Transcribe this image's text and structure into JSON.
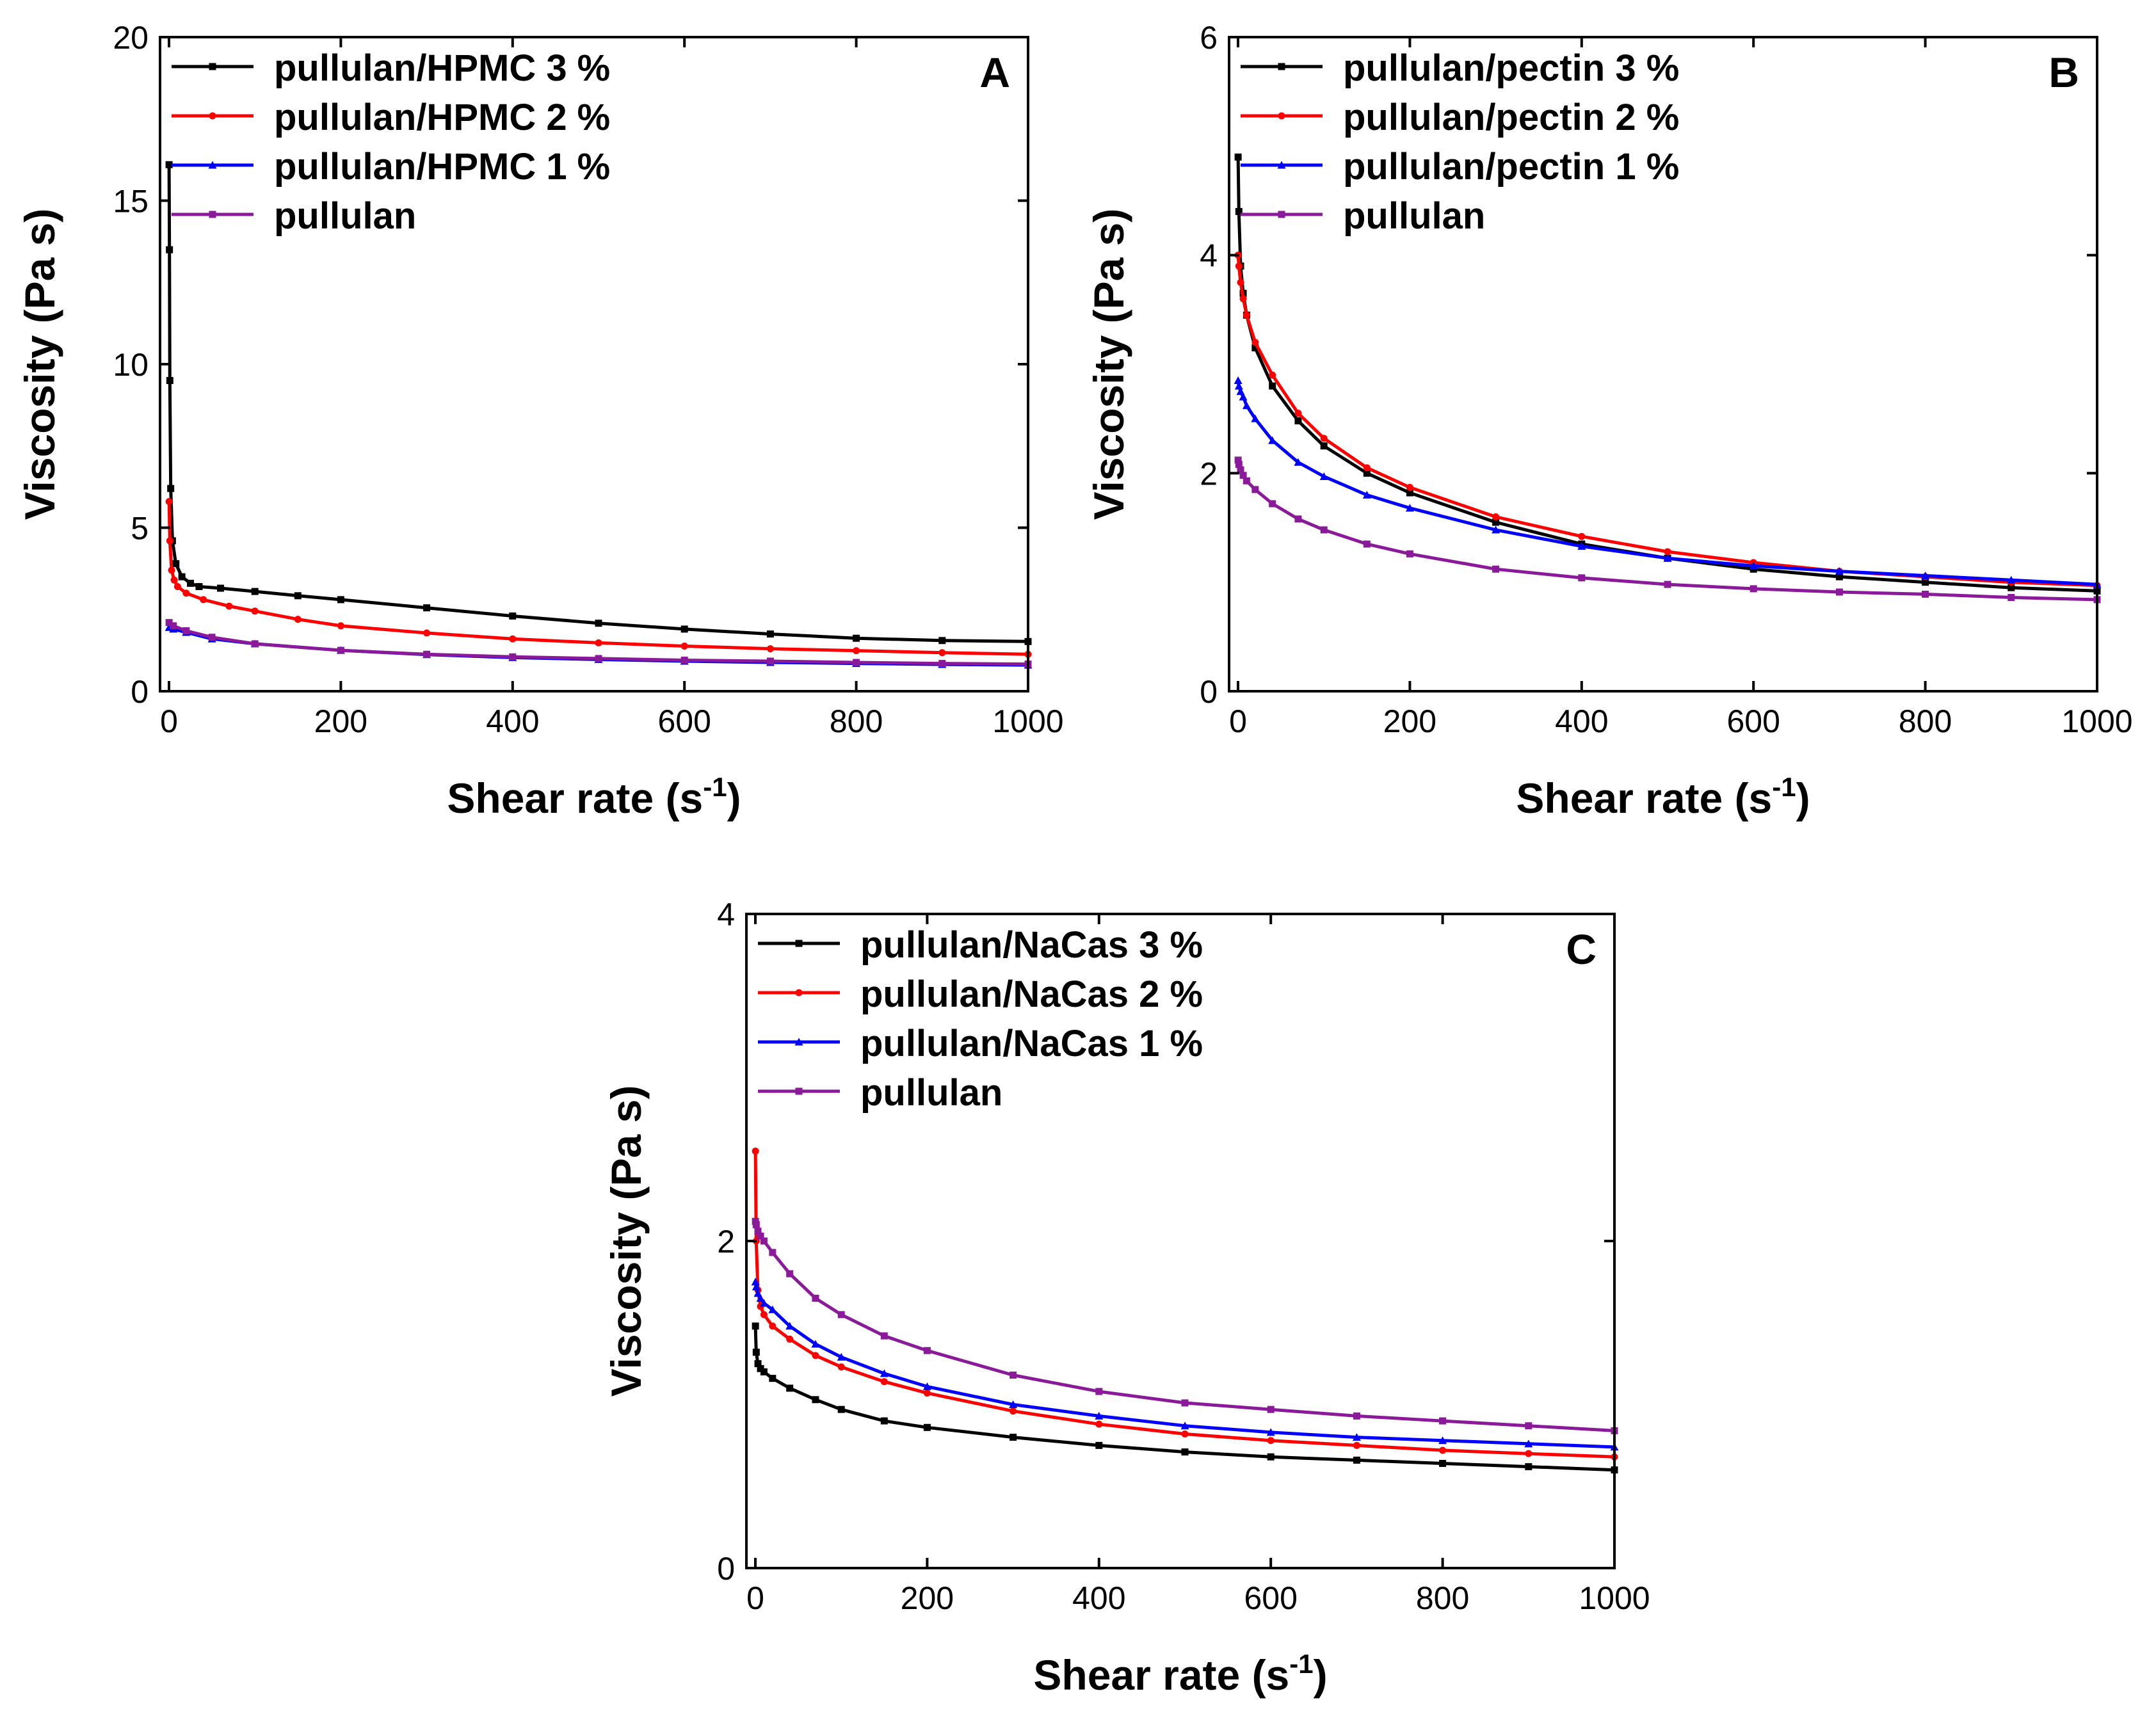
{
  "chart_data": [
    {
      "type": "line",
      "panel_label": "A",
      "xlabel": "Shear rate (s",
      "xlabel_sup": "-1",
      "xlabel_end": ")",
      "ylabel": "Viscosity (Pa s)",
      "xlim": [
        0,
        1000
      ],
      "ylim": [
        0,
        20
      ],
      "xticks": [
        0,
        200,
        400,
        600,
        800,
        1000
      ],
      "yticks": [
        0,
        5,
        10,
        15,
        20
      ],
      "legend_position": "top-left",
      "series": [
        {
          "name": "pullulan/HPMC 3 %",
          "color": "#000000",
          "marker": "square",
          "x": [
            0.1,
            0.5,
            1,
            2,
            4,
            8,
            15,
            25,
            35,
            60,
            100,
            150,
            200,
            300,
            400,
            500,
            600,
            700,
            800,
            900,
            1000
          ],
          "y": [
            16.1,
            13.5,
            9.5,
            6.2,
            4.6,
            3.9,
            3.5,
            3.3,
            3.2,
            3.15,
            3.05,
            2.92,
            2.8,
            2.55,
            2.3,
            2.08,
            1.9,
            1.75,
            1.62,
            1.55,
            1.52
          ]
        },
        {
          "name": "pullulan/HPMC 2 %",
          "color": "#ff0000",
          "marker": "circle",
          "x": [
            0.1,
            1,
            3,
            6,
            10,
            20,
            40,
            70,
            100,
            150,
            200,
            300,
            400,
            500,
            600,
            700,
            800,
            900,
            1000
          ],
          "y": [
            5.8,
            4.6,
            3.7,
            3.4,
            3.2,
            3.0,
            2.8,
            2.6,
            2.45,
            2.2,
            2.0,
            1.78,
            1.6,
            1.48,
            1.38,
            1.3,
            1.24,
            1.18,
            1.13
          ]
        },
        {
          "name": "pullulan/HPMC 1 %",
          "color": "#0000ff",
          "marker": "triangle",
          "x": [
            0.1,
            5,
            20,
            50,
            100,
            200,
            300,
            400,
            500,
            600,
            700,
            800,
            900,
            1000
          ],
          "y": [
            1.95,
            1.9,
            1.8,
            1.6,
            1.45,
            1.25,
            1.12,
            1.03,
            0.97,
            0.92,
            0.88,
            0.85,
            0.82,
            0.8
          ]
        },
        {
          "name": "pullulan",
          "color": "#8b1a9a",
          "marker": "square",
          "x": [
            0.1,
            5,
            20,
            50,
            100,
            200,
            300,
            400,
            500,
            600,
            700,
            800,
            900,
            1000
          ],
          "y": [
            2.1,
            2.0,
            1.85,
            1.65,
            1.45,
            1.25,
            1.13,
            1.05,
            1.0,
            0.95,
            0.92,
            0.88,
            0.85,
            0.83
          ]
        }
      ]
    },
    {
      "type": "line",
      "panel_label": "B",
      "xlabel": "Shear rate (s",
      "xlabel_sup": "-1",
      "xlabel_end": ")",
      "ylabel": "Viscosity (Pa s)",
      "xlim": [
        0,
        1000
      ],
      "ylim": [
        0,
        6
      ],
      "xticks": [
        0,
        200,
        400,
        600,
        800,
        1000
      ],
      "yticks": [
        0,
        2,
        4,
        6
      ],
      "legend_position": "top-left",
      "series": [
        {
          "name": "pullulan/pectin 3 %",
          "color": "#000000",
          "marker": "square",
          "x": [
            0.1,
            1,
            3,
            6,
            10,
            20,
            40,
            70,
            100,
            150,
            200,
            300,
            400,
            500,
            600,
            700,
            800,
            900,
            1000
          ],
          "y": [
            4.9,
            4.4,
            3.9,
            3.65,
            3.45,
            3.15,
            2.8,
            2.48,
            2.25,
            2.0,
            1.82,
            1.55,
            1.35,
            1.22,
            1.12,
            1.05,
            1.0,
            0.95,
            0.92
          ]
        },
        {
          "name": "pullulan/pectin 2 %",
          "color": "#ff0000",
          "marker": "circle",
          "x": [
            0.1,
            1,
            3,
            6,
            10,
            20,
            40,
            70,
            100,
            150,
            200,
            300,
            400,
            500,
            600,
            700,
            800,
            900,
            1000
          ],
          "y": [
            4.0,
            3.9,
            3.75,
            3.6,
            3.45,
            3.2,
            2.9,
            2.55,
            2.32,
            2.05,
            1.87,
            1.6,
            1.42,
            1.28,
            1.18,
            1.1,
            1.05,
            1.0,
            0.97
          ]
        },
        {
          "name": "pullulan/pectin 1 %",
          "color": "#0000ff",
          "marker": "triangle",
          "x": [
            0.1,
            1,
            3,
            6,
            10,
            20,
            40,
            70,
            100,
            150,
            200,
            300,
            400,
            500,
            600,
            700,
            800,
            900,
            1000
          ],
          "y": [
            2.85,
            2.8,
            2.75,
            2.7,
            2.62,
            2.5,
            2.3,
            2.1,
            1.97,
            1.8,
            1.68,
            1.48,
            1.33,
            1.22,
            1.15,
            1.1,
            1.06,
            1.02,
            0.98
          ]
        },
        {
          "name": "pullulan",
          "color": "#8b1a9a",
          "marker": "square",
          "x": [
            0.1,
            1,
            3,
            6,
            10,
            20,
            40,
            70,
            100,
            150,
            200,
            300,
            400,
            500,
            600,
            700,
            800,
            900,
            1000
          ],
          "y": [
            2.12,
            2.08,
            2.03,
            1.98,
            1.93,
            1.85,
            1.72,
            1.58,
            1.48,
            1.35,
            1.26,
            1.12,
            1.04,
            0.98,
            0.94,
            0.91,
            0.89,
            0.86,
            0.84
          ]
        }
      ]
    },
    {
      "type": "line",
      "panel_label": "C",
      "xlabel": "Shear rate (s",
      "xlabel_sup": "-1",
      "xlabel_end": ")",
      "ylabel": "Viscosity (Pa s)",
      "xlim": [
        0,
        1000
      ],
      "ylim": [
        0,
        4
      ],
      "xticks": [
        0,
        200,
        400,
        600,
        800,
        1000
      ],
      "yticks": [
        0,
        2,
        4
      ],
      "legend_position": "top-left",
      "series": [
        {
          "name": "pullulan/NaCas 3 %",
          "color": "#000000",
          "marker": "square",
          "x": [
            0.1,
            1,
            3,
            6,
            10,
            20,
            40,
            70,
            100,
            150,
            200,
            300,
            400,
            500,
            600,
            700,
            800,
            900,
            1000
          ],
          "y": [
            1.48,
            1.32,
            1.25,
            1.22,
            1.2,
            1.16,
            1.1,
            1.03,
            0.97,
            0.9,
            0.86,
            0.8,
            0.75,
            0.71,
            0.68,
            0.66,
            0.64,
            0.62,
            0.6
          ]
        },
        {
          "name": "pullulan/NaCas 2 %",
          "color": "#ff0000",
          "marker": "circle",
          "x": [
            0.1,
            1,
            3,
            6,
            10,
            20,
            40,
            70,
            100,
            150,
            200,
            300,
            400,
            500,
            600,
            700,
            800,
            900,
            1000
          ],
          "y": [
            2.55,
            2.0,
            1.7,
            1.6,
            1.55,
            1.48,
            1.4,
            1.3,
            1.23,
            1.14,
            1.07,
            0.96,
            0.88,
            0.82,
            0.78,
            0.75,
            0.72,
            0.7,
            0.68
          ]
        },
        {
          "name": "pullulan/NaCas 1 %",
          "color": "#0000ff",
          "marker": "triangle",
          "x": [
            0.1,
            1,
            3,
            6,
            10,
            20,
            40,
            70,
            100,
            150,
            200,
            300,
            400,
            500,
            600,
            700,
            800,
            900,
            1000
          ],
          "y": [
            1.75,
            1.72,
            1.68,
            1.65,
            1.62,
            1.58,
            1.48,
            1.37,
            1.29,
            1.19,
            1.11,
            1.0,
            0.93,
            0.87,
            0.83,
            0.8,
            0.78,
            0.76,
            0.74
          ]
        },
        {
          "name": "pullulan",
          "color": "#8b1a9a",
          "marker": "square",
          "x": [
            0.1,
            1,
            3,
            6,
            10,
            20,
            40,
            70,
            100,
            150,
            200,
            300,
            400,
            500,
            600,
            700,
            800,
            900,
            1000
          ],
          "y": [
            2.12,
            2.1,
            2.06,
            2.03,
            2.0,
            1.93,
            1.8,
            1.65,
            1.55,
            1.42,
            1.33,
            1.18,
            1.08,
            1.01,
            0.97,
            0.93,
            0.9,
            0.87,
            0.84
          ]
        }
      ]
    }
  ]
}
